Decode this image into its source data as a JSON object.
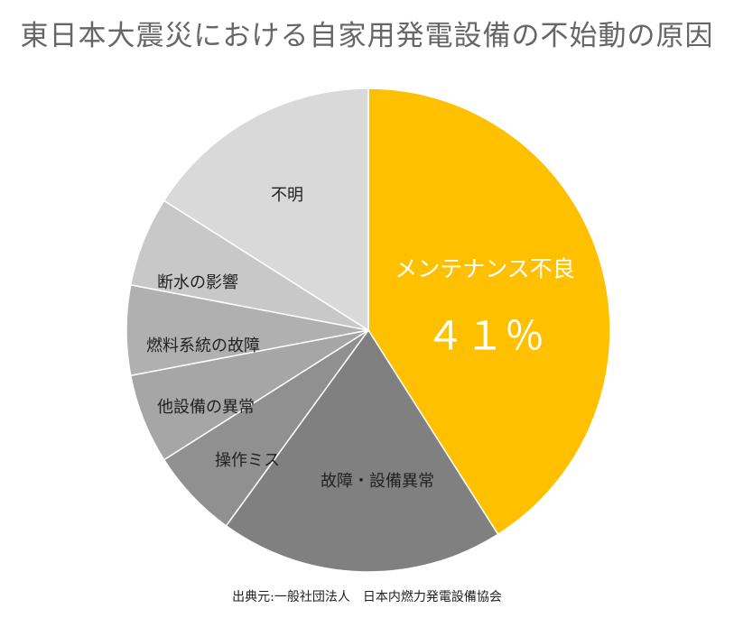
{
  "chart_data": {
    "type": "pie",
    "title": "東日本大震災における自家用発電設備の不始動の原因",
    "start": "top",
    "direction": "clockwise",
    "slices": [
      {
        "label": "メンテナンス不良",
        "value": 41,
        "value_label": "４１％",
        "color": "#FFC000",
        "label_color": "#ffffff"
      },
      {
        "label": "故障・設備異常",
        "value": 19,
        "color": "#808080",
        "label_color": "#222222"
      },
      {
        "label": "操作ミス",
        "value": 6,
        "color": "#909090",
        "label_color": "#222222"
      },
      {
        "label": "他設備の異常",
        "value": 6,
        "color": "#A6A6A6",
        "label_color": "#222222"
      },
      {
        "label": "燃料系統の故障",
        "value": 6,
        "color": "#B0B0B0",
        "label_color": "#222222"
      },
      {
        "label": "断水の影響",
        "value": 6,
        "color": "#C8C8C8",
        "label_color": "#222222"
      },
      {
        "label": "不明",
        "value": 16,
        "color": "#D9D9D9",
        "label_color": "#222222"
      }
    ]
  },
  "source": "出典元:一般社団法人　日本内燃力発電設備協会"
}
